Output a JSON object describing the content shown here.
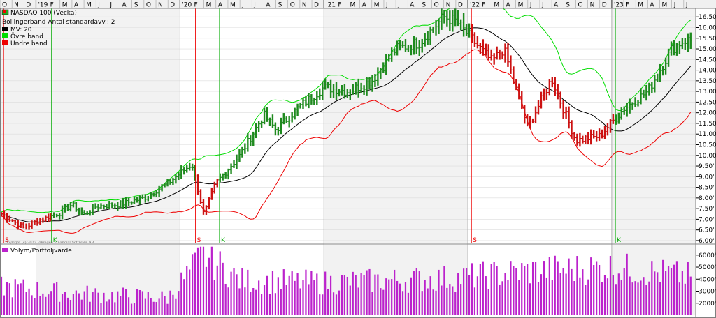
{
  "chart_data": [
    {
      "type": "ohlc",
      "title": "NASDAQ 100 (Vecka)",
      "subtitle": "Bollingerband  Antal standardavv.: 2",
      "legend": [
        {
          "label": "MV: 20",
          "color": "#000000"
        },
        {
          "label": "Övre band",
          "color": "#00dd00"
        },
        {
          "label": "Undre band",
          "color": "#ee0000"
        }
      ],
      "y_ticks": [
        "16.50'",
        "16.00'",
        "15.50'",
        "15.00'",
        "14.50'",
        "14.00'",
        "13.50'",
        "13.00'",
        "12.50'",
        "12.00'",
        "11.50'",
        "11.00'",
        "10.50'",
        "10.00'",
        "9.50'",
        "9.00'",
        "8.50'",
        "8.00'",
        "7.50'",
        "7.00'",
        "6.50'",
        "6.00'"
      ],
      "y_tick_values": [
        16500,
        16000,
        15500,
        15000,
        14500,
        14000,
        13500,
        13000,
        12500,
        12000,
        11500,
        11000,
        10500,
        10000,
        9500,
        9000,
        8500,
        8000,
        7500,
        7000,
        6500,
        6000
      ],
      "ylim": [
        5900,
        16900
      ],
      "x_month_labels": [
        "O",
        "N",
        "D",
        "'19",
        "F",
        "M",
        "A",
        "M",
        "J",
        "J",
        "A",
        "S",
        "O",
        "N",
        "D",
        "'20",
        "F",
        "M",
        "A",
        "M",
        "J",
        "J",
        "A",
        "S",
        "O",
        "N",
        "D",
        "'21",
        "F",
        "M",
        "A",
        "M",
        "J",
        "J",
        "A",
        "S",
        "O",
        "N",
        "D",
        "'22",
        "F",
        "M",
        "A",
        "M",
        "J",
        "J",
        "A",
        "S",
        "O",
        "N",
        "D",
        "'23",
        "F",
        "M",
        "A",
        "M",
        "J",
        "J"
      ],
      "signals": [
        {
          "label": "S",
          "color": "#ee0000",
          "date": "2018-10"
        },
        {
          "label": "K",
          "color": "#00aa00",
          "date": "2019-02"
        },
        {
          "label": "S",
          "color": "#ee0000",
          "date": "2020-02"
        },
        {
          "label": "K",
          "color": "#00aa00",
          "date": "2020-04"
        },
        {
          "label": "S",
          "color": "#ee0000",
          "date": "2022-01"
        },
        {
          "label": "K",
          "color": "#00aa00",
          "date": "2023-01"
        }
      ],
      "price_anchors": [
        {
          "date": "2018-10",
          "close": 7300
        },
        {
          "date": "2018-12",
          "close": 6600
        },
        {
          "date": "2019-01",
          "close": 6900
        },
        {
          "date": "2019-03",
          "close": 7300
        },
        {
          "date": "2019-04",
          "close": 7700
        },
        {
          "date": "2019-05",
          "close": 7200
        },
        {
          "date": "2019-06",
          "close": 7600
        },
        {
          "date": "2019-08",
          "close": 7700
        },
        {
          "date": "2019-10",
          "close": 8000
        },
        {
          "date": "2019-12",
          "close": 8700
        },
        {
          "date": "2020-02",
          "close": 9600
        },
        {
          "date": "2020-03",
          "close": 7200
        },
        {
          "date": "2020-04",
          "close": 8700
        },
        {
          "date": "2020-06",
          "close": 10000
        },
        {
          "date": "2020-08",
          "close": 11900
        },
        {
          "date": "2020-09",
          "close": 11200
        },
        {
          "date": "2020-11",
          "close": 12300
        },
        {
          "date": "2021-01",
          "close": 13200
        },
        {
          "date": "2021-03",
          "close": 13000
        },
        {
          "date": "2021-05",
          "close": 13500
        },
        {
          "date": "2021-07",
          "close": 15000
        },
        {
          "date": "2021-09",
          "close": 15300
        },
        {
          "date": "2021-11",
          "close": 16500
        },
        {
          "date": "2021-12",
          "close": 16300
        },
        {
          "date": "2022-03",
          "close": 14400
        },
        {
          "date": "2022-04",
          "close": 15000
        },
        {
          "date": "2022-06",
          "close": 11300
        },
        {
          "date": "2022-08",
          "close": 13600
        },
        {
          "date": "2022-10",
          "close": 10700
        },
        {
          "date": "2022-12",
          "close": 10900
        },
        {
          "date": "2023-02",
          "close": 12200
        },
        {
          "date": "2023-04",
          "close": 13000
        },
        {
          "date": "2023-06",
          "close": 15000
        },
        {
          "date": "2023-07",
          "close": 15400
        }
      ],
      "bands": {
        "moving_average": 20,
        "std_devs": 2
      },
      "grid": true
    },
    {
      "type": "bar",
      "title": "Volym/Portföljvärde",
      "color": "#bb22cc",
      "y_ticks": [
        "6000'",
        "5000'",
        "4000'",
        "3000'",
        "2000'"
      ],
      "y_tick_values": [
        6000,
        5000,
        4000,
        3000,
        2000
      ],
      "ylim": [
        1000,
        6800
      ],
      "volume_anchors": [
        {
          "date": "2018-10",
          "value": 3500
        },
        {
          "date": "2019-04",
          "value": 2900
        },
        {
          "date": "2019-12",
          "value": 2500
        },
        {
          "date": "2020-03",
          "value": 6200
        },
        {
          "date": "2020-06",
          "value": 4000
        },
        {
          "date": "2021-01",
          "value": 3800
        },
        {
          "date": "2021-12",
          "value": 4200
        },
        {
          "date": "2022-06",
          "value": 4800
        },
        {
          "date": "2023-01",
          "value": 5100
        },
        {
          "date": "2023-07",
          "value": 4400
        }
      ]
    }
  ],
  "copyright": "Copyright (c) 2023 Vikingen Financial Software AB"
}
